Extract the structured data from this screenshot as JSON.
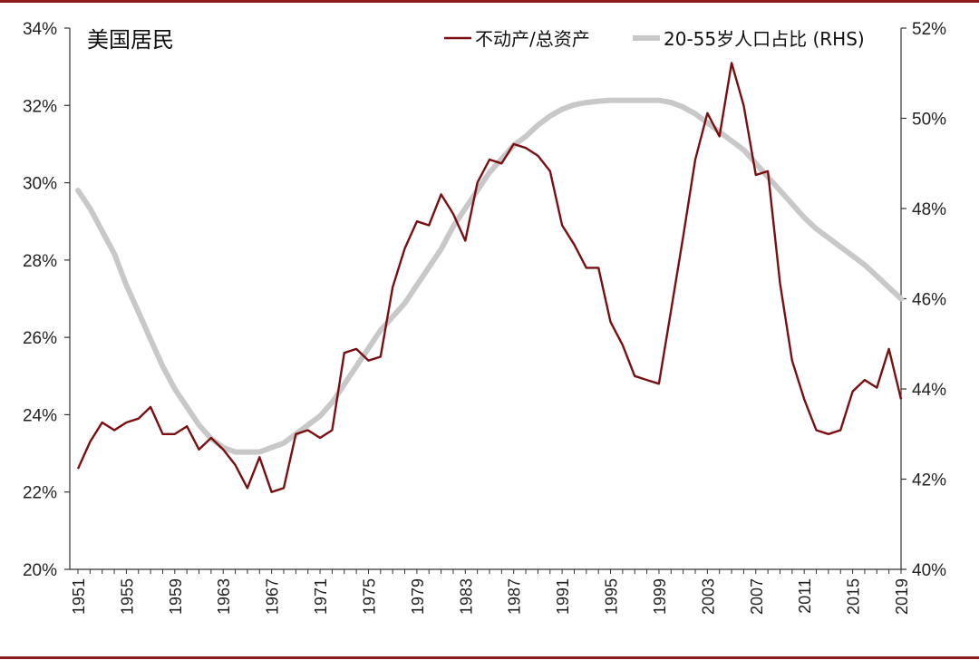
{
  "chart_data": {
    "type": "line",
    "title": "美国居民",
    "x": [
      1951,
      1952,
      1953,
      1954,
      1955,
      1956,
      1957,
      1958,
      1959,
      1960,
      1961,
      1962,
      1963,
      1964,
      1965,
      1966,
      1967,
      1968,
      1969,
      1970,
      1971,
      1972,
      1973,
      1974,
      1975,
      1976,
      1977,
      1978,
      1979,
      1980,
      1981,
      1982,
      1983,
      1984,
      1985,
      1986,
      1987,
      1988,
      1989,
      1990,
      1991,
      1992,
      1993,
      1994,
      1995,
      1996,
      1997,
      1998,
      1999,
      2000,
      2001,
      2002,
      2003,
      2004,
      2005,
      2006,
      2007,
      2008,
      2009,
      2010,
      2011,
      2012,
      2013,
      2014,
      2015,
      2016,
      2017,
      2018,
      2019
    ],
    "x_ticks": [
      "1951",
      "1955",
      "1959",
      "1963",
      "1967",
      "1971",
      "1975",
      "1979",
      "1983",
      "1987",
      "1991",
      "1995",
      "1999",
      "2003",
      "2007",
      "2011",
      "2015",
      "2019"
    ],
    "y_left": {
      "range": [
        20,
        34
      ],
      "ticks": [
        "20%",
        "22%",
        "24%",
        "26%",
        "28%",
        "30%",
        "32%",
        "34%"
      ]
    },
    "y_right": {
      "range": [
        40,
        52
      ],
      "ticks": [
        "40%",
        "42%",
        "44%",
        "46%",
        "48%",
        "50%",
        "52%"
      ]
    },
    "grid": false,
    "legend_position": "top-right",
    "colors": {
      "series1": "#7a0f12",
      "series2": "#c8c8c8",
      "frame": "#8b1a1a",
      "axis": "#333333"
    },
    "series": [
      {
        "name": "不动产/总资产",
        "axis": "left",
        "values": [
          22.6,
          23.3,
          23.8,
          23.6,
          23.8,
          23.9,
          24.2,
          23.5,
          23.5,
          23.7,
          23.1,
          23.4,
          23.1,
          22.7,
          22.1,
          22.9,
          22.0,
          22.1,
          23.5,
          23.6,
          23.4,
          23.6,
          25.6,
          25.7,
          25.4,
          25.5,
          27.3,
          28.3,
          29.0,
          28.9,
          29.7,
          29.2,
          28.5,
          30.0,
          30.6,
          30.5,
          31.0,
          30.9,
          30.7,
          30.3,
          28.9,
          28.4,
          27.8,
          27.8,
          26.4,
          25.8,
          25.0,
          24.9,
          24.8,
          26.7,
          28.6,
          30.6,
          31.8,
          31.2,
          33.1,
          32.0,
          30.2,
          30.3,
          27.4,
          25.4,
          24.4,
          23.6,
          23.5,
          23.6,
          24.6,
          24.9,
          24.7,
          25.7,
          24.4
        ]
      },
      {
        "name": "20-55岁人口占比 (RHS)",
        "axis": "right",
        "values": [
          48.4,
          48.0,
          47.5,
          47.0,
          46.3,
          45.7,
          45.1,
          44.5,
          44.0,
          43.6,
          43.2,
          42.9,
          42.7,
          42.6,
          42.6,
          42.6,
          42.7,
          42.8,
          43.0,
          43.2,
          43.4,
          43.7,
          44.1,
          44.5,
          44.9,
          45.3,
          45.6,
          45.9,
          46.3,
          46.7,
          47.1,
          47.6,
          48.0,
          48.4,
          48.8,
          49.1,
          49.4,
          49.6,
          49.85,
          50.05,
          50.2,
          50.3,
          50.35,
          50.38,
          50.4,
          50.4,
          50.4,
          50.4,
          50.4,
          50.35,
          50.25,
          50.1,
          49.9,
          49.7,
          49.5,
          49.3,
          49.0,
          48.7,
          48.4,
          48.1,
          47.8,
          47.55,
          47.35,
          47.15,
          46.95,
          46.75,
          46.5,
          46.25,
          46.0
        ]
      }
    ]
  }
}
